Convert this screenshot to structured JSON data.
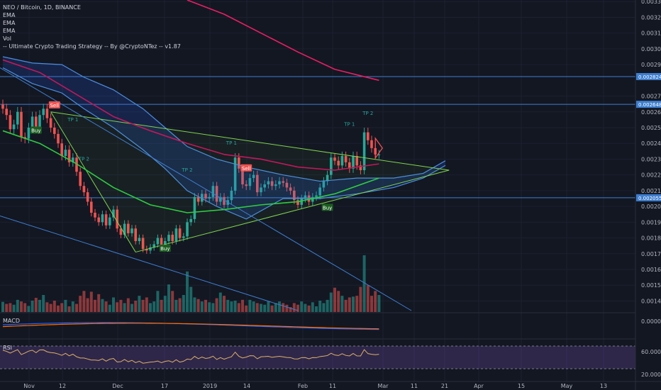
{
  "header": {
    "symbol_line": "NEO / Bitcoin, 1D, BINANCE",
    "indicators": [
      "EMA",
      "EMA",
      "EMA",
      "Vol",
      "-- Ultimate Crypto Trading Strategy -- By @CryptoNTez -- v1.87"
    ]
  },
  "panes": {
    "macd_label": "MACD",
    "rsi_label": "RSI"
  },
  "colors": {
    "background": "#131722",
    "up": "#26a69a",
    "down": "#ef5350",
    "ema_fast": "#2ecc40",
    "ema_slow": "#e91e63",
    "cloud": "#2962ff",
    "trendline": "#7fd44c",
    "channel": "#3d7ecf"
  },
  "chart_data": {
    "type": "candlestick",
    "x_ticks": [
      "Nov",
      "12",
      "Dec",
      "17",
      "2019",
      "14",
      "Feb",
      "11",
      "Mar",
      "11",
      "21",
      "Apr",
      "15",
      "May",
      "13"
    ],
    "y_ticks": [
      "0.003300",
      "0.003200",
      "0.003100",
      "0.003000",
      "0.002900",
      "0.002700",
      "0.002600",
      "0.002500",
      "0.002400",
      "0.002300",
      "0.002200",
      "0.002100",
      "0.002000",
      "0.001900",
      "0.001800",
      "0.001700",
      "0.001600",
      "0.001500",
      "0.001400"
    ],
    "ylim": [
      0.00133,
      0.00331
    ],
    "price_labels": [
      {
        "value": 0.002824,
        "text": "0.002824"
      },
      {
        "value": 0.002648,
        "text": "0.002648"
      },
      {
        "value": 0.002055,
        "text": "0.002055"
      }
    ],
    "close": [
      0.00262,
      0.00258,
      0.00249,
      0.00252,
      0.0026,
      0.00244,
      0.00243,
      0.0025,
      0.00257,
      0.0025,
      0.00258,
      0.00262,
      0.00256,
      0.0025,
      0.00246,
      0.0024,
      0.00232,
      0.00236,
      0.00228,
      0.00231,
      0.00222,
      0.00213,
      0.00209,
      0.00203,
      0.00196,
      0.00193,
      0.0019,
      0.00195,
      0.00188,
      0.00193,
      0.00198,
      0.00186,
      0.00182,
      0.00189,
      0.00183,
      0.00186,
      0.00178,
      0.0018,
      0.00173,
      0.00172,
      0.00174,
      0.00176,
      0.0018,
      0.00175,
      0.00178,
      0.00182,
      0.00178,
      0.00186,
      0.0018,
      0.00181,
      0.0019,
      0.00192,
      0.00206,
      0.00203,
      0.00208,
      0.00205,
      0.00206,
      0.00213,
      0.00203,
      0.00206,
      0.00201,
      0.00204,
      0.0021,
      0.00231,
      0.00224,
      0.00214,
      0.00213,
      0.00218,
      0.0022,
      0.00209,
      0.00212,
      0.00214,
      0.00216,
      0.00213,
      0.00214,
      0.00216,
      0.00215,
      0.00212,
      0.0021,
      0.00204,
      0.00201,
      0.00205,
      0.00207,
      0.00203,
      0.00206,
      0.00207,
      0.00212,
      0.00216,
      0.0022,
      0.00231,
      0.00229,
      0.00226,
      0.00232,
      0.00228,
      0.00224,
      0.00232,
      0.00226,
      0.00223,
      0.00247,
      0.00242,
      0.00237,
      0.00233,
      0.00233
    ],
    "volume": [
      0.25,
      0.2,
      0.22,
      0.18,
      0.3,
      0.26,
      0.22,
      0.15,
      0.28,
      0.35,
      0.3,
      0.42,
      0.24,
      0.2,
      0.28,
      0.16,
      0.22,
      0.3,
      0.14,
      0.26,
      0.2,
      0.4,
      0.52,
      0.34,
      0.5,
      0.3,
      0.44,
      0.32,
      0.26,
      0.18,
      0.36,
      0.24,
      0.3,
      0.22,
      0.34,
      0.2,
      0.28,
      0.4,
      0.3,
      0.36,
      0.22,
      0.26,
      0.52,
      0.3,
      0.4,
      0.68,
      0.52,
      0.3,
      0.34,
      0.42,
      1.0,
      0.62,
      0.36,
      0.32,
      0.26,
      0.3,
      0.24,
      0.22,
      0.34,
      0.48,
      0.4,
      0.3,
      0.26,
      0.28,
      0.22,
      0.3,
      0.16,
      0.3,
      0.26,
      0.22,
      0.2,
      0.18,
      0.26,
      0.16,
      0.22,
      0.26,
      0.22,
      0.18,
      0.12,
      0.22,
      0.18,
      0.26,
      0.2,
      0.16,
      0.24,
      0.14,
      0.28,
      0.22,
      0.3,
      0.48,
      0.6,
      0.52,
      0.4,
      0.3,
      0.36,
      0.38,
      0.4,
      0.62,
      1.4,
      0.66,
      0.4,
      0.52,
      0.42
    ],
    "ema_fast_anchor": [
      [
        0,
        0.00248
      ],
      [
        10,
        0.0024
      ],
      [
        20,
        0.00227
      ],
      [
        30,
        0.00212
      ],
      [
        40,
        0.00201
      ],
      [
        50,
        0.00196
      ],
      [
        60,
        0.00198
      ],
      [
        70,
        0.00201
      ],
      [
        80,
        0.00203
      ],
      [
        90,
        0.00208
      ],
      [
        102,
        0.00218
      ]
    ],
    "ema_slow_anchor": [
      [
        0,
        0.00293
      ],
      [
        10,
        0.00285
      ],
      [
        20,
        0.00271
      ],
      [
        30,
        0.00257
      ],
      [
        40,
        0.00248
      ],
      [
        50,
        0.0024
      ],
      [
        60,
        0.00233
      ],
      [
        70,
        0.0023
      ],
      [
        80,
        0.00225
      ],
      [
        90,
        0.00223
      ],
      [
        102,
        0.00227
      ]
    ],
    "ema_long_anchor": [
      [
        50,
        0.00331
      ],
      [
        60,
        0.00322
      ],
      [
        70,
        0.0031
      ],
      [
        80,
        0.00298
      ],
      [
        90,
        0.00287
      ],
      [
        102,
        0.0028
      ]
    ],
    "cloud_upper": [
      [
        0,
        0.00295
      ],
      [
        8,
        0.00291
      ],
      [
        16,
        0.0029
      ],
      [
        22,
        0.00282
      ],
      [
        30,
        0.00274
      ],
      [
        38,
        0.00262
      ],
      [
        44,
        0.0025
      ],
      [
        50,
        0.00238
      ],
      [
        58,
        0.0023
      ],
      [
        66,
        0.00225
      ],
      [
        76,
        0.0022
      ],
      [
        86,
        0.00216
      ],
      [
        96,
        0.00218
      ],
      [
        106,
        0.00218
      ],
      [
        114,
        0.00221
      ],
      [
        120,
        0.00229
      ]
    ],
    "cloud_lower": [
      [
        0,
        0.00288
      ],
      [
        8,
        0.00278
      ],
      [
        16,
        0.00272
      ],
      [
        22,
        0.00262
      ],
      [
        30,
        0.0025
      ],
      [
        38,
        0.00236
      ],
      [
        44,
        0.00224
      ],
      [
        50,
        0.0021
      ],
      [
        58,
        0.002
      ],
      [
        66,
        0.00192
      ],
      [
        76,
        0.00205
      ],
      [
        86,
        0.00205
      ],
      [
        96,
        0.00208
      ],
      [
        106,
        0.00212
      ],
      [
        114,
        0.00218
      ],
      [
        120,
        0.00226
      ]
    ],
    "signals": [
      {
        "text": "Sell",
        "index": 14,
        "value": 0.00264,
        "kind": "sell"
      },
      {
        "text": "Buy",
        "index": 9,
        "value": 0.00248,
        "kind": "buy"
      },
      {
        "text": "TP 1",
        "index": 19,
        "value": 0.00255,
        "kind": "tp"
      },
      {
        "text": "TP 2",
        "index": 22,
        "value": 0.0023,
        "kind": "tp"
      },
      {
        "text": "Buy",
        "index": 44,
        "value": 0.00173,
        "kind": "buy"
      },
      {
        "text": "TP 1",
        "index": 62,
        "value": 0.0024,
        "kind": "tp"
      },
      {
        "text": "TP 2",
        "index": 50,
        "value": 0.00223,
        "kind": "tp"
      },
      {
        "text": "Sell",
        "index": 66,
        "value": 0.00224,
        "kind": "sell"
      },
      {
        "text": "Buy",
        "index": 88,
        "value": 0.00199,
        "kind": "buy"
      },
      {
        "text": "TP 1",
        "index": 94,
        "value": 0.00252,
        "kind": "tp"
      },
      {
        "text": "TP 2",
        "index": 99,
        "value": 0.00259,
        "kind": "tp"
      }
    ],
    "macd": {
      "ylabel": "0.0000"
    },
    "rsi": {
      "ticks": [
        "60.0000",
        "20.0000"
      ],
      "ylim": [
        10,
        80
      ]
    }
  }
}
